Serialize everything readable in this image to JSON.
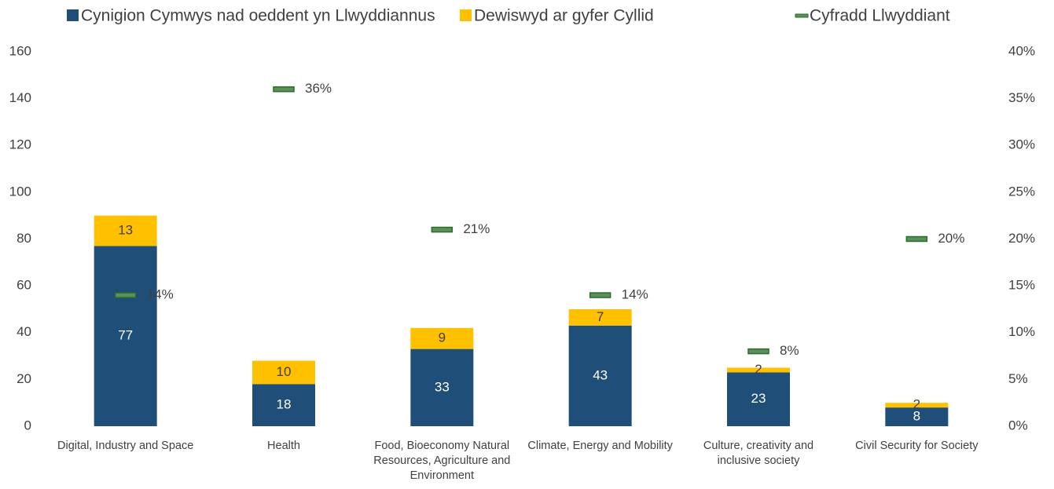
{
  "chart_data": {
    "type": "bar",
    "stacked": true,
    "categories": [
      "Digital, Industry and Space",
      "Health",
      "Food, Bioeconomy Natural Resources, Agriculture and Environment",
      "Climate, Energy and Mobility",
      "Culture, creativity and inclusive society",
      "Civil Security for Society"
    ],
    "series": [
      {
        "name": "Cynigion Cymwys nad oeddent yn Llwyddiannus",
        "color": "#1f4e79",
        "values": [
          77,
          18,
          33,
          43,
          23,
          8
        ]
      },
      {
        "name": "Dewiswyd ar gyfer Cyllid",
        "color": "#ffc000",
        "values": [
          13,
          10,
          9,
          7,
          2,
          2
        ]
      },
      {
        "name": "Cyfradd Llwyddiant",
        "color": "#5b8f5b",
        "type": "marker",
        "axis": "y2",
        "values": [
          14,
          36,
          21,
          14,
          8,
          20
        ],
        "value_labels": [
          "14%",
          "36%",
          "21%",
          "14%",
          "8%",
          "20%"
        ]
      }
    ],
    "ylim": [
      0,
      160
    ],
    "yticks": [
      0,
      20,
      40,
      60,
      80,
      100,
      120,
      140,
      160
    ],
    "y2lim": [
      0,
      40
    ],
    "y2ticks": [
      {
        "value": 0,
        "label": "0%"
      },
      {
        "value": 5,
        "label": "5%"
      },
      {
        "value": 10,
        "label": "10%"
      },
      {
        "value": 15,
        "label": "15%"
      },
      {
        "value": 20,
        "label": "20%"
      },
      {
        "value": 25,
        "label": "25%"
      },
      {
        "value": 30,
        "label": "30%"
      },
      {
        "value": 35,
        "label": "35%"
      },
      {
        "value": 40,
        "label": "40%"
      }
    ],
    "legend": "top"
  }
}
